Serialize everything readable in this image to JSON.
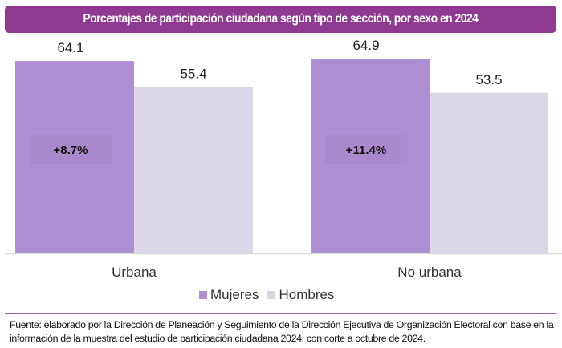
{
  "title": "Porcentajes de participación ciudadana según tipo de sección, por sexo en 2024",
  "colors": {
    "banner": "#8e3a91",
    "mujeres": "#ac8fd3",
    "hombres": "#dcd7e7",
    "diff_box": "#a989cc",
    "axis": "#d9d9d9",
    "rule": "#9a5fa2"
  },
  "chart_data": {
    "type": "bar",
    "title": "Porcentajes de participación ciudadana según tipo de sección, por sexo en 2024",
    "categories": [
      "Urbana",
      "No urbana"
    ],
    "series": [
      {
        "name": "Mujeres",
        "values": [
          64.1,
          64.9
        ],
        "labels": [
          "64.1",
          "64.9"
        ]
      },
      {
        "name": "Hombres",
        "values": [
          55.4,
          53.5
        ],
        "labels": [
          "55.4",
          "53.5"
        ]
      }
    ],
    "annotations": [
      "+8.7%",
      "+11.4%"
    ],
    "xlabel": "",
    "ylabel": "",
    "ylim": [
      0,
      70
    ],
    "grid": false,
    "legend_position": "bottom-center"
  },
  "legend": {
    "items": [
      {
        "label": "Mujeres"
      },
      {
        "label": "Hombres"
      }
    ]
  },
  "source": {
    "text": "Fuente: elaborado por la Dirección de Planeación y Seguimiento de la Dirección Ejecutiva de Organización Electoral con base en la información de la muestra del estudio de participación ciudadana 2024, con corte a octubre de 2024."
  }
}
